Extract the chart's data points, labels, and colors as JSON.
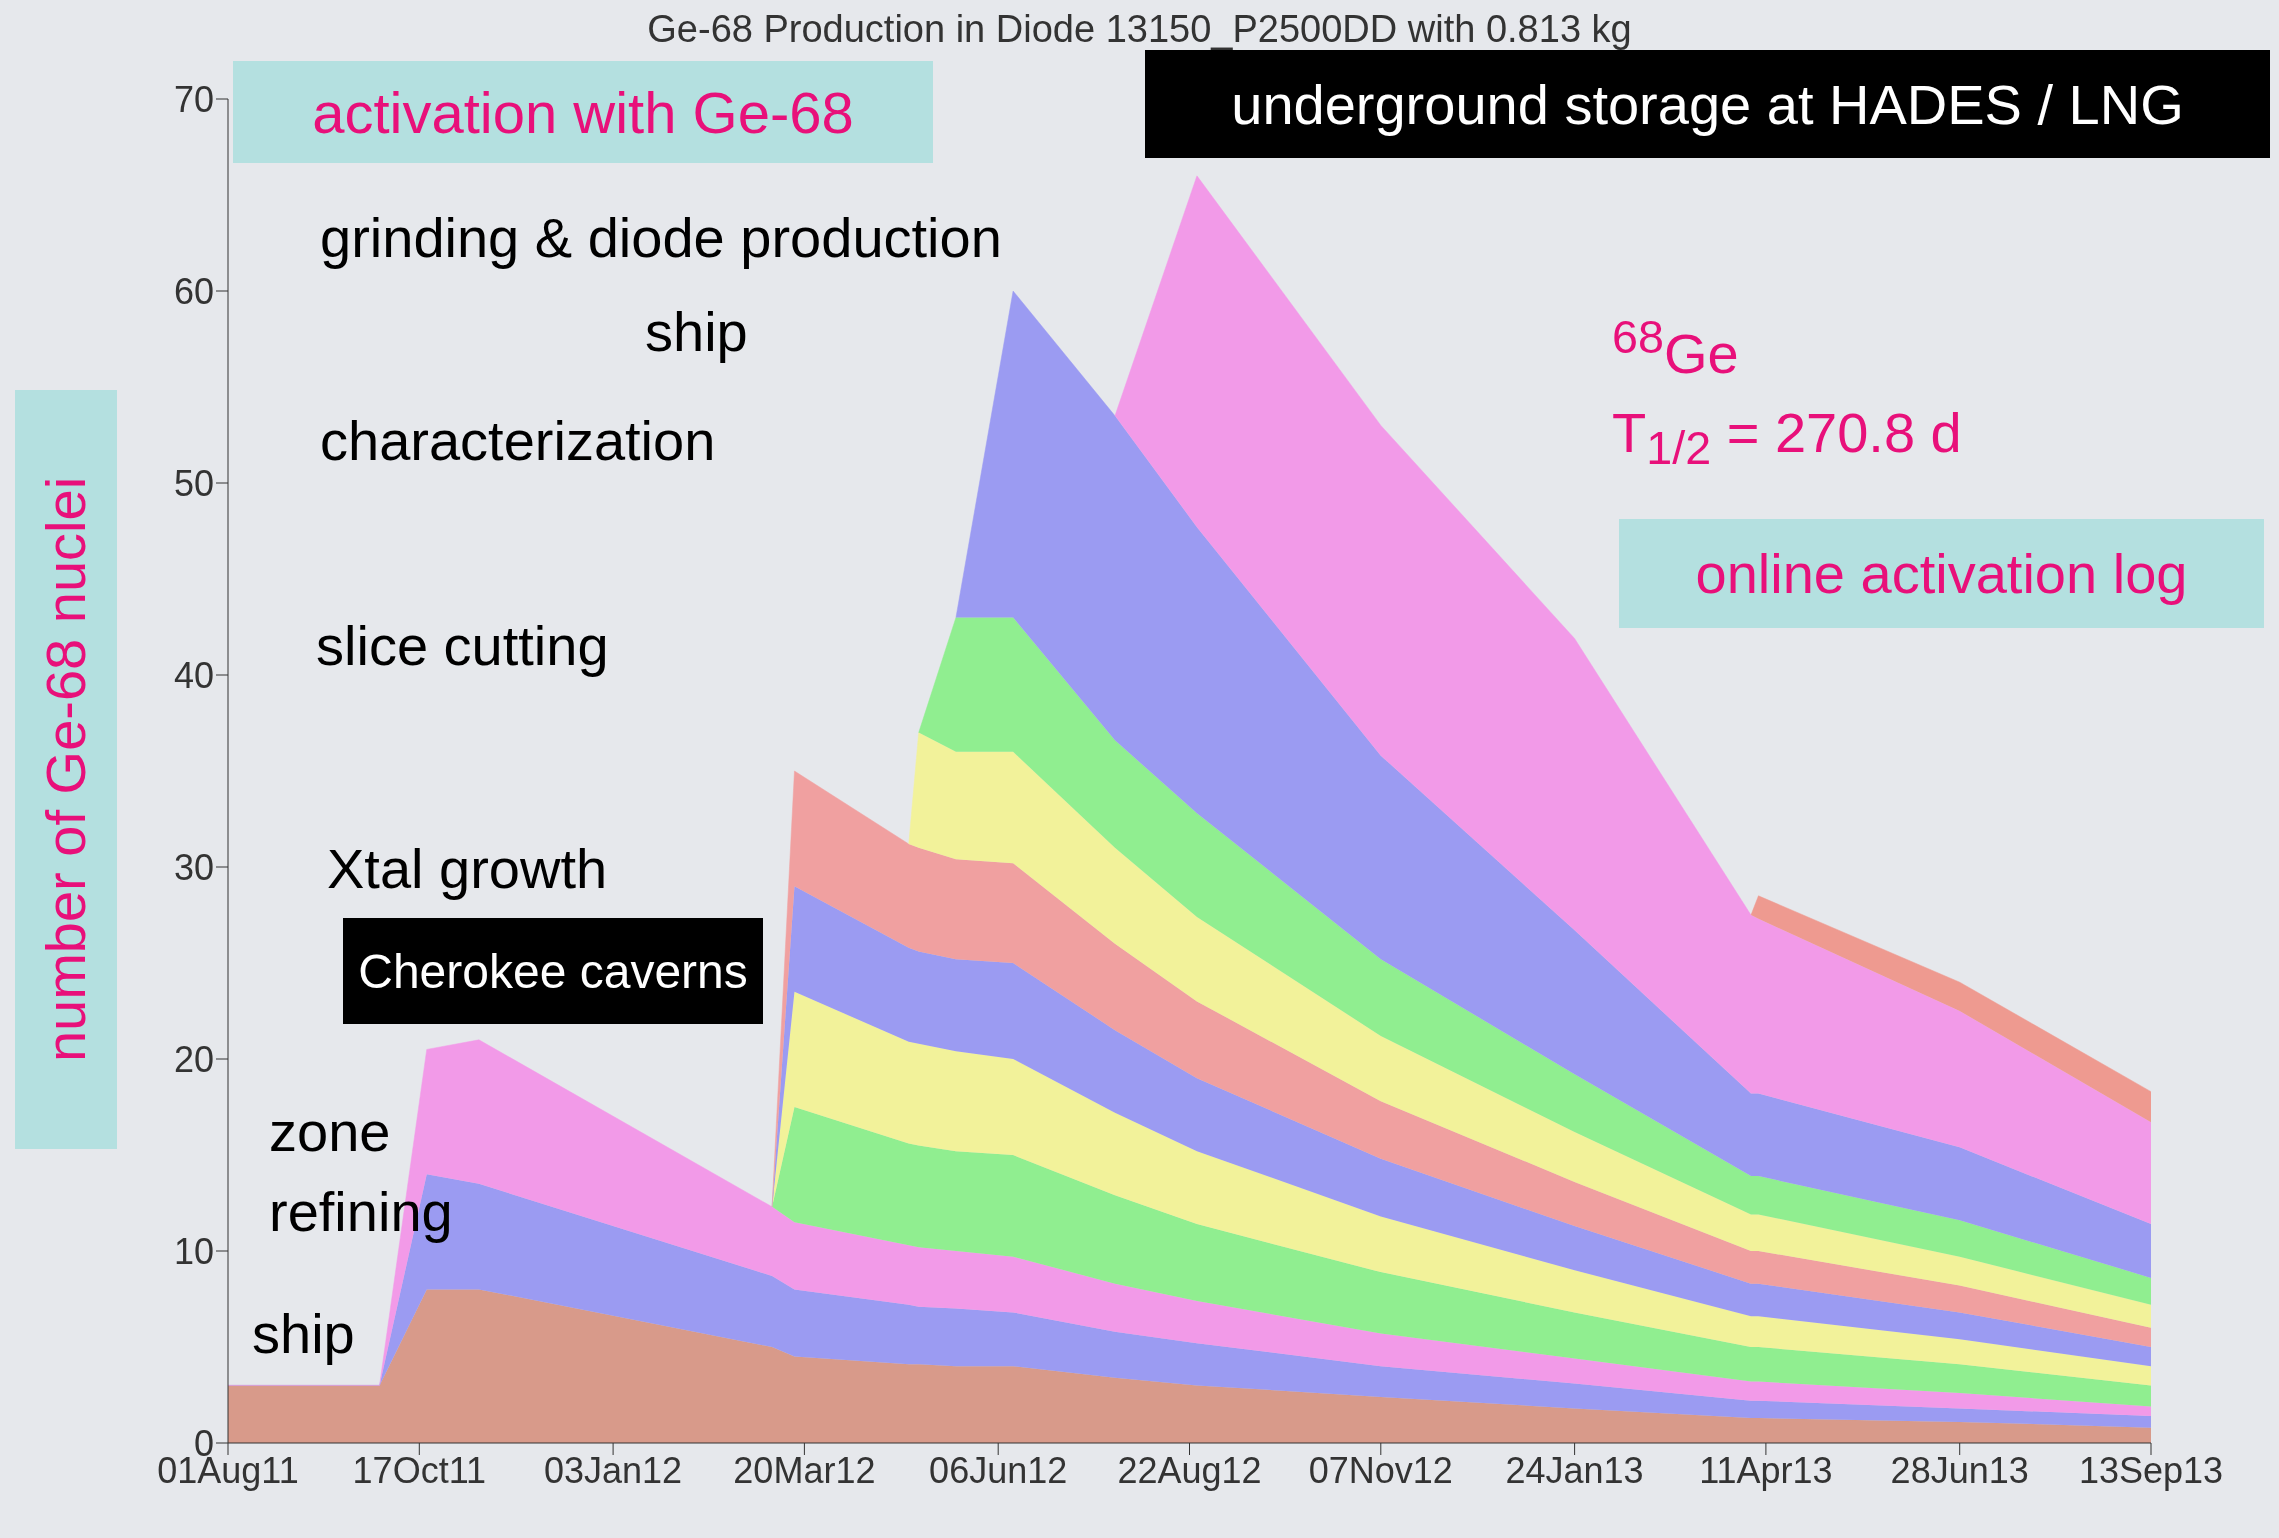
{
  "chart_data": {
    "type": "area",
    "stacked": true,
    "title": "Ge-68 Production in Diode 13150_P2500DD with 0.813 kg",
    "ylabel": "number of Ge-68 nuclei",
    "x": [
      "2011-08-01",
      "2011-10-01",
      "2011-10-20",
      "2011-11-10",
      "2012-03-07",
      "2012-03-16",
      "2012-05-01",
      "2012-05-05",
      "2012-05-20",
      "2012-06-12",
      "2012-07-23",
      "2012-08-25",
      "2012-11-07",
      "2013-01-24",
      "2013-04-05",
      "2013-04-08",
      "2013-06-28",
      "2013-09-13"
    ],
    "series": [
      {
        "color": "#d89a8a",
        "values": [
          3,
          3,
          8,
          8,
          5,
          4.5,
          4.1,
          4.1,
          4,
          4,
          3.4,
          3,
          2.4,
          1.8,
          1.3,
          1.3,
          1.1,
          0.8
        ]
      },
      {
        "color": "#9b9bf2",
        "values": [
          0,
          0,
          6,
          5.5,
          3.7,
          3.5,
          3.1,
          3,
          3,
          2.8,
          2.4,
          2.2,
          1.6,
          1.3,
          0.9,
          0.9,
          0.7,
          0.6
        ]
      },
      {
        "color": "#f29ae8",
        "values": [
          0,
          0,
          6.5,
          7.5,
          3.6,
          3.5,
          3.1,
          3.1,
          3,
          2.9,
          2.5,
          2.2,
          1.7,
          1.3,
          1,
          1,
          0.8,
          0.5
        ]
      },
      {
        "color": "#90ee90",
        "values": [
          null,
          null,
          null,
          null,
          0,
          6,
          5.3,
          5.3,
          5.2,
          5.3,
          4.6,
          4,
          3.2,
          2.4,
          1.8,
          1.8,
          1.5,
          1.1
        ]
      },
      {
        "color": "#f2f29a",
        "values": [
          null,
          null,
          null,
          null,
          0,
          6,
          5.3,
          5.3,
          5.2,
          5,
          4.3,
          3.8,
          2.9,
          2.2,
          1.6,
          1.6,
          1.3,
          1
        ]
      },
      {
        "color": "#9b9bf2",
        "values": [
          null,
          null,
          null,
          null,
          0,
          5.5,
          4.9,
          4.8,
          4.8,
          5,
          4.3,
          3.8,
          3,
          2.3,
          1.7,
          1.7,
          1.4,
          1
        ]
      },
      {
        "color": "#f0a0a0",
        "values": [
          null,
          null,
          null,
          null,
          0,
          6,
          5.4,
          5.4,
          5.2,
          5.2,
          4.5,
          4,
          3,
          2.3,
          1.7,
          1.7,
          1.4,
          1
        ]
      },
      {
        "color": "#f2f29a",
        "values": [
          null,
          null,
          null,
          null,
          null,
          null,
          0,
          6,
          5.6,
          5.8,
          5,
          4.4,
          3.4,
          2.6,
          1.9,
          1.9,
          1.5,
          1.2
        ]
      },
      {
        "color": "#90ee90",
        "values": [
          null,
          null,
          null,
          null,
          null,
          null,
          null,
          0,
          7,
          7,
          5.6,
          5.4,
          4,
          3,
          2,
          2,
          1.9,
          1.4
        ]
      },
      {
        "color": "#9b9bf2",
        "values": [
          null,
          null,
          null,
          null,
          null,
          null,
          null,
          null,
          0,
          17,
          16.9,
          14.9,
          10.6,
          7.5,
          4.3,
          4.3,
          3.8,
          2.8
        ]
      },
      {
        "color": "#f29ae8",
        "values": [
          null,
          null,
          null,
          null,
          null,
          null,
          null,
          null,
          null,
          null,
          0,
          18.3,
          17.2,
          15.2,
          9.3,
          9.1,
          7.1,
          5.3
        ]
      },
      {
        "color": "#ee9a90",
        "values": [
          null,
          null,
          null,
          null,
          null,
          null,
          null,
          null,
          null,
          null,
          null,
          null,
          null,
          null,
          0,
          1.2,
          1.5,
          1.6
        ]
      }
    ],
    "xlim": [
      "2011-08-01",
      "2013-09-13"
    ],
    "xticks": [
      {
        "value": "2011-08-01",
        "label": "01Aug11"
      },
      {
        "value": "2011-10-17",
        "label": "17Oct11"
      },
      {
        "value": "2012-01-03",
        "label": "03Jan12"
      },
      {
        "value": "2012-03-20",
        "label": "20Mar12"
      },
      {
        "value": "2012-06-06",
        "label": "06Jun12"
      },
      {
        "value": "2012-08-22",
        "label": "22Aug12"
      },
      {
        "value": "2012-11-07",
        "label": "07Nov12"
      },
      {
        "value": "2013-01-24",
        "label": "24Jan13"
      },
      {
        "value": "2013-04-11",
        "label": "11Apr13"
      },
      {
        "value": "2013-06-28",
        "label": "28Jun13"
      },
      {
        "value": "2013-09-13",
        "label": "13Sep13"
      }
    ],
    "ylim": [
      0,
      70
    ],
    "yticks": [
      0,
      10,
      20,
      30,
      40,
      50,
      60,
      70
    ],
    "annotations": [
      "activation with Ge-68",
      "underground storage at HADES / LNG",
      "grinding & diode production",
      "ship",
      "characterization",
      "slice cutting",
      "Xtal growth",
      "Cherokee caverns",
      "zone",
      "refining",
      "ship",
      "$^{68}$Ge",
      "T$_{1/2}$ = 270.8 d",
      "online activation log"
    ]
  }
}
